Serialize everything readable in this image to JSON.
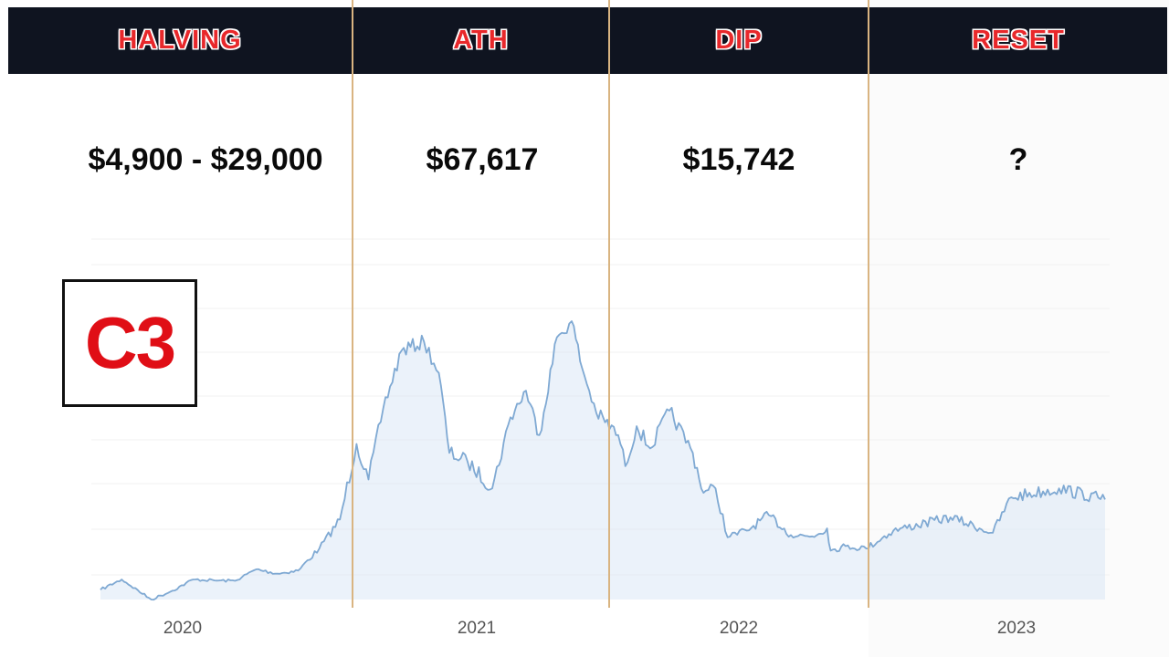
{
  "phases": [
    {
      "label": "HALVING",
      "price": "$4,900 - $29,000"
    },
    {
      "label": "ATH",
      "price": "$67,617"
    },
    {
      "label": "DIP",
      "price": "$15,742"
    },
    {
      "label": "RESET",
      "price": "?"
    }
  ],
  "badge": {
    "text": "C3"
  },
  "colors": {
    "header_bg": "#0f1420",
    "header_text": "#e8282b",
    "divider": "#d9b481",
    "line": "#7fa9d3",
    "area": "#dbe8f5",
    "badge_text": "#e00e16"
  },
  "chart_data": {
    "type": "line",
    "title": "",
    "xlabel": "",
    "ylabel": "",
    "x_ticks": [
      "2020",
      "2021",
      "2022",
      "2023"
    ],
    "series": [
      {
        "name": "",
        "points": [
          [
            "2020-01-01",
            7200
          ],
          [
            "2020-02-01",
            9500
          ],
          [
            "2020-03-15",
            5000
          ],
          [
            "2020-04-15",
            7000
          ],
          [
            "2020-05-15",
            9500
          ],
          [
            "2020-06-15",
            9300
          ],
          [
            "2020-07-15",
            9200
          ],
          [
            "2020-08-15",
            11800
          ],
          [
            "2020-09-15",
            10800
          ],
          [
            "2020-10-15",
            11500
          ],
          [
            "2020-11-15",
            16500
          ],
          [
            "2020-12-15",
            23000
          ],
          [
            "2021-01-08",
            40000
          ],
          [
            "2021-01-25",
            32000
          ],
          [
            "2021-02-15",
            48000
          ],
          [
            "2021-03-13",
            61000
          ],
          [
            "2021-04-14",
            63000
          ],
          [
            "2021-05-05",
            56000
          ],
          [
            "2021-05-20",
            38000
          ],
          [
            "2021-06-15",
            36000
          ],
          [
            "2021-07-20",
            30000
          ],
          [
            "2021-08-15",
            46000
          ],
          [
            "2021-09-06",
            52000
          ],
          [
            "2021-09-25",
            42000
          ],
          [
            "2021-10-20",
            64000
          ],
          [
            "2021-11-10",
            67617
          ],
          [
            "2021-11-25",
            57000
          ],
          [
            "2021-12-15",
            47000
          ],
          [
            "2022-01-15",
            42000
          ],
          [
            "2022-01-25",
            35000
          ],
          [
            "2022-02-10",
            44000
          ],
          [
            "2022-03-01",
            39000
          ],
          [
            "2022-03-28",
            47500
          ],
          [
            "2022-04-30",
            38000
          ],
          [
            "2022-05-15",
            29000
          ],
          [
            "2022-06-01",
            30000
          ],
          [
            "2022-06-18",
            19000
          ],
          [
            "2022-07-15",
            20500
          ],
          [
            "2022-08-15",
            24000
          ],
          [
            "2022-09-15",
            19500
          ],
          [
            "2022-10-15",
            19200
          ],
          [
            "2022-11-05",
            21000
          ],
          [
            "2022-11-10",
            16000
          ],
          [
            "2022-12-01",
            17000
          ],
          [
            "2022-12-30",
            16500
          ],
          [
            "2023-01-15",
            20500
          ],
          [
            "2023-02-15",
            23500
          ],
          [
            "2023-03-10",
            20000
          ],
          [
            "2023-03-20",
            28000
          ],
          [
            "2023-04-15",
            30000
          ],
          [
            "2023-05-10",
            27500
          ]
        ]
      }
    ],
    "grid": "horizontal"
  }
}
